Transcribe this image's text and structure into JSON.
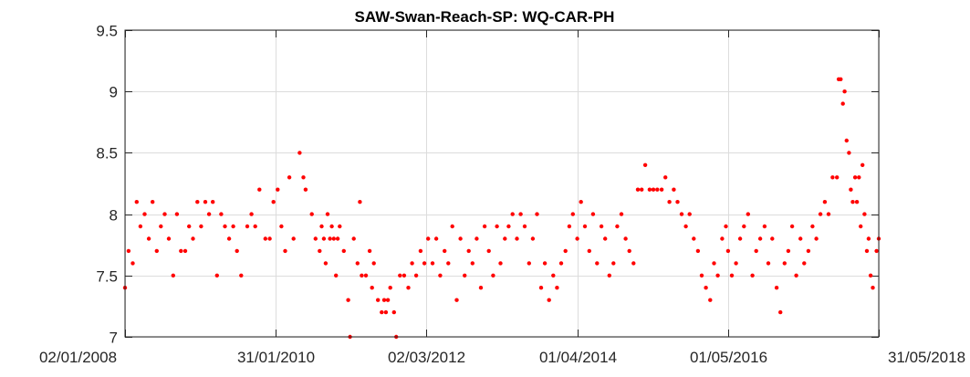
{
  "chart_data": {
    "type": "scatter",
    "title": "SAW-Swan-Reach-SP: WQ-CAR-PH",
    "xlabel": "",
    "ylabel": "",
    "x_axis": {
      "scale": "date",
      "range": [
        "2008-01-02",
        "2018-05-31"
      ],
      "ticks": [
        "2008-01-02",
        "2010-01-31",
        "2012-03-02",
        "2014-04-01",
        "2016-05-01",
        "2018-05-31"
      ],
      "tick_labels": [
        "02/01/2008",
        "31/01/2010",
        "02/03/2012",
        "01/04/2014",
        "01/05/2016",
        "31/05/2018"
      ]
    },
    "y_axis": {
      "range": [
        7,
        9.5
      ],
      "ticks": [
        7,
        7.5,
        8,
        8.5,
        9,
        9.5
      ],
      "tick_labels": [
        "7",
        "7.5",
        "8",
        "8.5",
        "9",
        "9.5"
      ]
    },
    "grid": true,
    "legend": "none",
    "marker_color": "#ff0000",
    "series": [
      {
        "points": [
          [
            "2008-01-02",
            7.4
          ],
          [
            "2008-01-20",
            7.7
          ],
          [
            "2008-02-10",
            7.6
          ],
          [
            "2008-03-01",
            8.1
          ],
          [
            "2008-03-20",
            7.9
          ],
          [
            "2008-04-10",
            8.0
          ],
          [
            "2008-05-01",
            7.8
          ],
          [
            "2008-05-20",
            8.1
          ],
          [
            "2008-06-10",
            7.7
          ],
          [
            "2008-07-01",
            7.9
          ],
          [
            "2008-07-20",
            8.0
          ],
          [
            "2008-08-10",
            7.8
          ],
          [
            "2008-09-01",
            7.5
          ],
          [
            "2008-09-20",
            8.0
          ],
          [
            "2008-10-10",
            7.7
          ],
          [
            "2008-11-01",
            7.7
          ],
          [
            "2008-11-20",
            7.9
          ],
          [
            "2008-12-10",
            7.8
          ],
          [
            "2009-01-01",
            8.1
          ],
          [
            "2009-01-20",
            7.9
          ],
          [
            "2009-02-10",
            8.1
          ],
          [
            "2009-03-01",
            8.0
          ],
          [
            "2009-03-20",
            8.1
          ],
          [
            "2009-04-10",
            7.5
          ],
          [
            "2009-05-01",
            8.0
          ],
          [
            "2009-05-20",
            7.9
          ],
          [
            "2009-06-10",
            7.8
          ],
          [
            "2009-07-01",
            7.9
          ],
          [
            "2009-07-20",
            7.7
          ],
          [
            "2009-08-10",
            7.5
          ],
          [
            "2009-09-10",
            7.9
          ],
          [
            "2009-10-01",
            8.0
          ],
          [
            "2009-10-20",
            7.9
          ],
          [
            "2009-11-10",
            8.2
          ],
          [
            "2009-12-10",
            7.8
          ],
          [
            "2010-01-01",
            7.8
          ],
          [
            "2010-01-20",
            8.1
          ],
          [
            "2010-02-10",
            8.2
          ],
          [
            "2010-03-01",
            7.9
          ],
          [
            "2010-03-20",
            7.7
          ],
          [
            "2010-04-10",
            8.3
          ],
          [
            "2010-05-01",
            7.8
          ],
          [
            "2010-06-01",
            8.5
          ],
          [
            "2010-06-20",
            8.3
          ],
          [
            "2010-07-01",
            8.2
          ],
          [
            "2010-08-01",
            8.0
          ],
          [
            "2010-08-20",
            7.8
          ],
          [
            "2010-09-10",
            7.7
          ],
          [
            "2010-09-20",
            7.9
          ],
          [
            "2010-10-01",
            7.8
          ],
          [
            "2010-10-10",
            7.6
          ],
          [
            "2010-10-20",
            8.0
          ],
          [
            "2010-11-01",
            7.8
          ],
          [
            "2010-11-10",
            7.9
          ],
          [
            "2010-11-20",
            7.8
          ],
          [
            "2010-12-01",
            7.5
          ],
          [
            "2010-12-10",
            7.8
          ],
          [
            "2010-12-20",
            7.9
          ],
          [
            "2011-01-10",
            7.7
          ],
          [
            "2011-02-01",
            7.3
          ],
          [
            "2011-02-10",
            7.0
          ],
          [
            "2011-03-01",
            7.8
          ],
          [
            "2011-03-20",
            7.6
          ],
          [
            "2011-04-01",
            8.1
          ],
          [
            "2011-04-10",
            7.5
          ],
          [
            "2011-05-01",
            7.5
          ],
          [
            "2011-05-20",
            7.7
          ],
          [
            "2011-06-01",
            7.4
          ],
          [
            "2011-06-10",
            7.6
          ],
          [
            "2011-07-01",
            7.3
          ],
          [
            "2011-07-20",
            7.2
          ],
          [
            "2011-08-01",
            7.3
          ],
          [
            "2011-08-10",
            7.2
          ],
          [
            "2011-08-20",
            7.3
          ],
          [
            "2011-09-01",
            7.4
          ],
          [
            "2011-09-20",
            7.2
          ],
          [
            "2011-10-01",
            7.0
          ],
          [
            "2011-10-20",
            7.5
          ],
          [
            "2011-11-10",
            7.5
          ],
          [
            "2011-12-01",
            7.4
          ],
          [
            "2011-12-20",
            7.6
          ],
          [
            "2012-01-10",
            7.5
          ],
          [
            "2012-02-01",
            7.7
          ],
          [
            "2012-02-20",
            7.6
          ],
          [
            "2012-03-10",
            7.8
          ],
          [
            "2012-04-01",
            7.6
          ],
          [
            "2012-04-20",
            7.8
          ],
          [
            "2012-05-10",
            7.5
          ],
          [
            "2012-06-01",
            7.7
          ],
          [
            "2012-06-20",
            7.6
          ],
          [
            "2012-07-10",
            7.9
          ],
          [
            "2012-08-01",
            7.3
          ],
          [
            "2012-08-20",
            7.8
          ],
          [
            "2012-09-10",
            7.5
          ],
          [
            "2012-10-01",
            7.7
          ],
          [
            "2012-10-20",
            7.6
          ],
          [
            "2012-11-10",
            7.8
          ],
          [
            "2012-12-01",
            7.4
          ],
          [
            "2012-12-20",
            7.9
          ],
          [
            "2013-01-10",
            7.7
          ],
          [
            "2013-02-01",
            7.5
          ],
          [
            "2013-02-20",
            7.9
          ],
          [
            "2013-03-10",
            7.6
          ],
          [
            "2013-04-01",
            7.8
          ],
          [
            "2013-04-20",
            7.9
          ],
          [
            "2013-05-10",
            8.0
          ],
          [
            "2013-06-01",
            7.8
          ],
          [
            "2013-06-20",
            8.0
          ],
          [
            "2013-07-10",
            7.9
          ],
          [
            "2013-08-01",
            7.6
          ],
          [
            "2013-08-20",
            7.8
          ],
          [
            "2013-09-10",
            8.0
          ],
          [
            "2013-10-01",
            7.4
          ],
          [
            "2013-10-20",
            7.6
          ],
          [
            "2013-11-10",
            7.3
          ],
          [
            "2013-12-01",
            7.5
          ],
          [
            "2013-12-20",
            7.4
          ],
          [
            "2014-01-10",
            7.6
          ],
          [
            "2014-02-01",
            7.7
          ],
          [
            "2014-02-20",
            7.9
          ],
          [
            "2014-03-10",
            8.0
          ],
          [
            "2014-04-01",
            7.8
          ],
          [
            "2014-04-20",
            8.1
          ],
          [
            "2014-05-10",
            7.9
          ],
          [
            "2014-06-01",
            7.7
          ],
          [
            "2014-06-20",
            8.0
          ],
          [
            "2014-07-10",
            7.6
          ],
          [
            "2014-08-01",
            7.9
          ],
          [
            "2014-08-20",
            7.8
          ],
          [
            "2014-09-10",
            7.5
          ],
          [
            "2014-10-01",
            7.6
          ],
          [
            "2014-10-20",
            7.9
          ],
          [
            "2014-11-10",
            8.0
          ],
          [
            "2014-12-01",
            7.8
          ],
          [
            "2014-12-20",
            7.7
          ],
          [
            "2015-01-10",
            7.6
          ],
          [
            "2015-02-01",
            8.2
          ],
          [
            "2015-02-20",
            8.2
          ],
          [
            "2015-03-10",
            8.4
          ],
          [
            "2015-04-01",
            8.2
          ],
          [
            "2015-04-20",
            8.2
          ],
          [
            "2015-05-10",
            8.2
          ],
          [
            "2015-06-01",
            8.2
          ],
          [
            "2015-06-20",
            8.3
          ],
          [
            "2015-07-10",
            8.1
          ],
          [
            "2015-08-01",
            8.2
          ],
          [
            "2015-08-20",
            8.1
          ],
          [
            "2015-09-10",
            8.0
          ],
          [
            "2015-10-01",
            7.9
          ],
          [
            "2015-10-20",
            8.0
          ],
          [
            "2015-11-10",
            7.8
          ],
          [
            "2015-12-01",
            7.7
          ],
          [
            "2015-12-20",
            7.5
          ],
          [
            "2016-01-10",
            7.4
          ],
          [
            "2016-02-01",
            7.3
          ],
          [
            "2016-02-20",
            7.6
          ],
          [
            "2016-03-10",
            7.5
          ],
          [
            "2016-04-01",
            7.8
          ],
          [
            "2016-04-20",
            7.9
          ],
          [
            "2016-05-01",
            7.7
          ],
          [
            "2016-05-20",
            7.5
          ],
          [
            "2016-06-10",
            7.6
          ],
          [
            "2016-07-01",
            7.8
          ],
          [
            "2016-07-20",
            7.9
          ],
          [
            "2016-08-10",
            8.0
          ],
          [
            "2016-09-01",
            7.5
          ],
          [
            "2016-09-20",
            7.7
          ],
          [
            "2016-10-10",
            7.8
          ],
          [
            "2016-11-01",
            7.9
          ],
          [
            "2016-11-20",
            7.6
          ],
          [
            "2016-12-10",
            7.8
          ],
          [
            "2017-01-01",
            7.4
          ],
          [
            "2017-01-20",
            7.2
          ],
          [
            "2017-02-10",
            7.6
          ],
          [
            "2017-03-01",
            7.7
          ],
          [
            "2017-03-20",
            7.9
          ],
          [
            "2017-04-10",
            7.5
          ],
          [
            "2017-05-01",
            7.8
          ],
          [
            "2017-05-20",
            7.6
          ],
          [
            "2017-06-10",
            7.7
          ],
          [
            "2017-07-01",
            7.9
          ],
          [
            "2017-07-20",
            7.8
          ],
          [
            "2017-08-10",
            8.0
          ],
          [
            "2017-09-01",
            8.1
          ],
          [
            "2017-09-20",
            8.0
          ],
          [
            "2017-10-10",
            8.3
          ],
          [
            "2017-11-01",
            8.3
          ],
          [
            "2017-11-10",
            9.1
          ],
          [
            "2017-11-20",
            9.1
          ],
          [
            "2017-12-01",
            8.9
          ],
          [
            "2017-12-10",
            9.0
          ],
          [
            "2017-12-20",
            8.6
          ],
          [
            "2018-01-01",
            8.5
          ],
          [
            "2018-01-10",
            8.2
          ],
          [
            "2018-01-20",
            8.1
          ],
          [
            "2018-02-01",
            8.3
          ],
          [
            "2018-02-10",
            8.1
          ],
          [
            "2018-02-20",
            8.3
          ],
          [
            "2018-03-01",
            7.9
          ],
          [
            "2018-03-10",
            8.4
          ],
          [
            "2018-03-20",
            8.0
          ],
          [
            "2018-04-01",
            7.7
          ],
          [
            "2018-04-10",
            7.8
          ],
          [
            "2018-04-20",
            7.5
          ],
          [
            "2018-05-01",
            7.4
          ],
          [
            "2018-05-20",
            7.7
          ],
          [
            "2018-05-31",
            7.8
          ]
        ]
      }
    ]
  }
}
